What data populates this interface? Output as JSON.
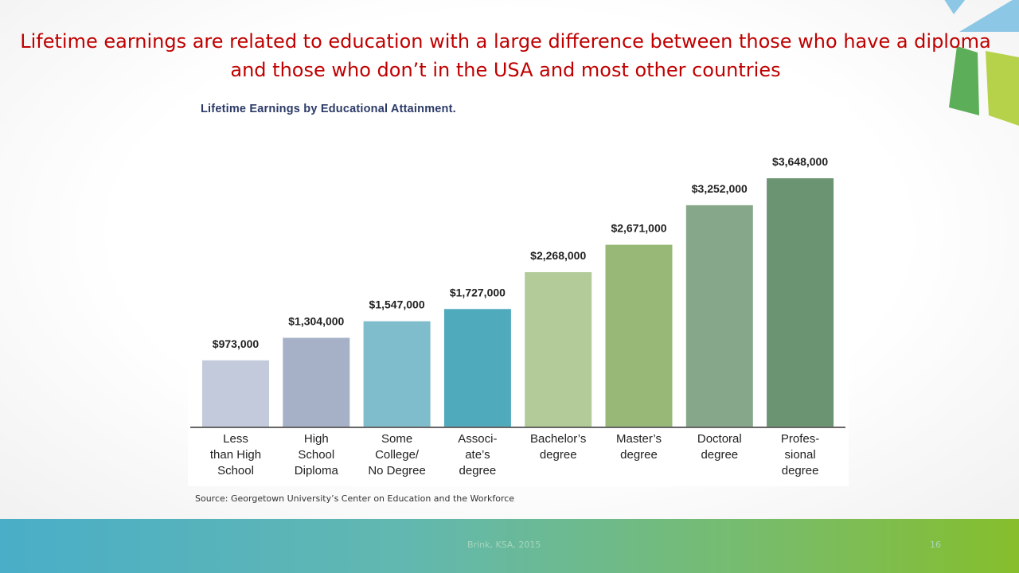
{
  "slide": {
    "title": "Lifetime earnings are related to education with a large difference between those who have a diploma and those who don’t in the USA and most other countries",
    "source": "Source: Georgetown University’s Center on Education and the Workforce",
    "footer_text": "Brink, KSA, 2015",
    "page_number": "16"
  },
  "colors": {
    "title": "#c00000",
    "chart_title": "#2b3a67",
    "deco_blue": "#8cc7e6",
    "deco_green": "#5cae58",
    "deco_lime": "#b6d24a"
  },
  "chart_data": {
    "type": "bar",
    "title": "Lifetime Earnings by Educational Attainment.",
    "xlabel": "",
    "ylabel": "",
    "ylim": [
      0,
      3648000
    ],
    "grid": false,
    "categories": [
      "Less than High School",
      "High School Diploma",
      "Some College/ No Degree",
      "Associ- ate’s degree",
      "Bachelor’s degree",
      "Master’s degree",
      "Doctoral degree",
      "Profes- sional degree"
    ],
    "category_lines": [
      [
        "Less",
        "than High",
        "School"
      ],
      [
        "High",
        "School",
        "Diploma"
      ],
      [
        "Some",
        "College/",
        "No Degree"
      ],
      [
        "Associ-",
        "ate’s",
        "degree"
      ],
      [
        "Bachelor’s",
        "degree"
      ],
      [
        "Master’s",
        "degree"
      ],
      [
        "Doctoral",
        "degree"
      ],
      [
        "Profes-",
        "sional",
        "degree"
      ]
    ],
    "values": [
      973000,
      1304000,
      1547000,
      1727000,
      2268000,
      2671000,
      3252000,
      3648000
    ],
    "value_labels": [
      "$973,000",
      "$1,304,000",
      "$1,547,000",
      "$1,727,000",
      "$2,268,000",
      "$2,671,000",
      "$3,252,000",
      "$3,648,000"
    ],
    "bar_colors": [
      "#c3cadb",
      "#a6b1c8",
      "#7fbdcc",
      "#4faabc",
      "#b3cb98",
      "#98b878",
      "#87a78b",
      "#6a9472"
    ]
  }
}
